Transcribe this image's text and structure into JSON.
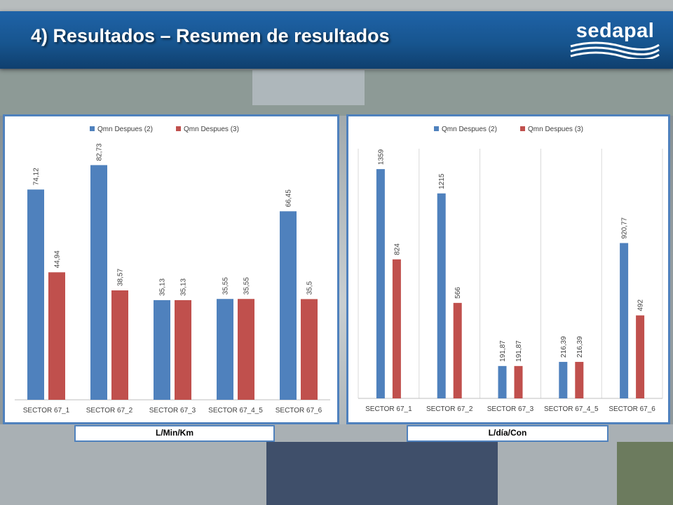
{
  "slide": {
    "title": "4) Resultados – Resumen de resultados"
  },
  "logo": {
    "text": "sedapal"
  },
  "colors": {
    "series1": "#4f81bd",
    "series2": "#c0504d",
    "header": "#1a5a9c",
    "panel_border": "#4f81bd"
  },
  "chart_data": [
    {
      "type": "bar",
      "unit_label": "L/Min/Km",
      "legend_position": "top",
      "grid": false,
      "categories": [
        "SECTOR 67_1",
        "SECTOR 67_2",
        "SECTOR 67_3",
        "SECTOR 67_4_5",
        "SECTOR 67_6"
      ],
      "series": [
        {
          "name": "Qmn Despues (2)",
          "values": [
            74.12,
            82.73,
            35.13,
            35.55,
            66.45
          ],
          "labels": [
            "74,12",
            "82,73",
            "35,13",
            "35,55",
            "66,45"
          ]
        },
        {
          "name": "Qmn Despues (3)",
          "values": [
            44.94,
            38.57,
            35.13,
            35.55,
            35.5
          ],
          "labels": [
            "44,94",
            "38,57",
            "35,13",
            "35,55",
            "35,5"
          ]
        }
      ],
      "ylim": [
        0,
        90
      ]
    },
    {
      "type": "bar",
      "unit_label": "L/día/Con",
      "legend_position": "top",
      "grid": true,
      "categories": [
        "SECTOR 67_1",
        "SECTOR 67_2",
        "SECTOR 67_3",
        "SECTOR 67_4_5",
        "SECTOR 67_6"
      ],
      "series": [
        {
          "name": "Qmn Despues (2)",
          "values": [
            1359,
            1215,
            191.87,
            216.39,
            920.77
          ],
          "labels": [
            "1359",
            "1215",
            "191,87",
            "216,39",
            "920,77"
          ]
        },
        {
          "name": "Qmn Despues (3)",
          "values": [
            824,
            566,
            191.87,
            216.39,
            492
          ],
          "labels": [
            "824",
            "566",
            "191,87",
            "216,39",
            "492"
          ]
        }
      ],
      "ylim": [
        0,
        1480
      ]
    }
  ]
}
